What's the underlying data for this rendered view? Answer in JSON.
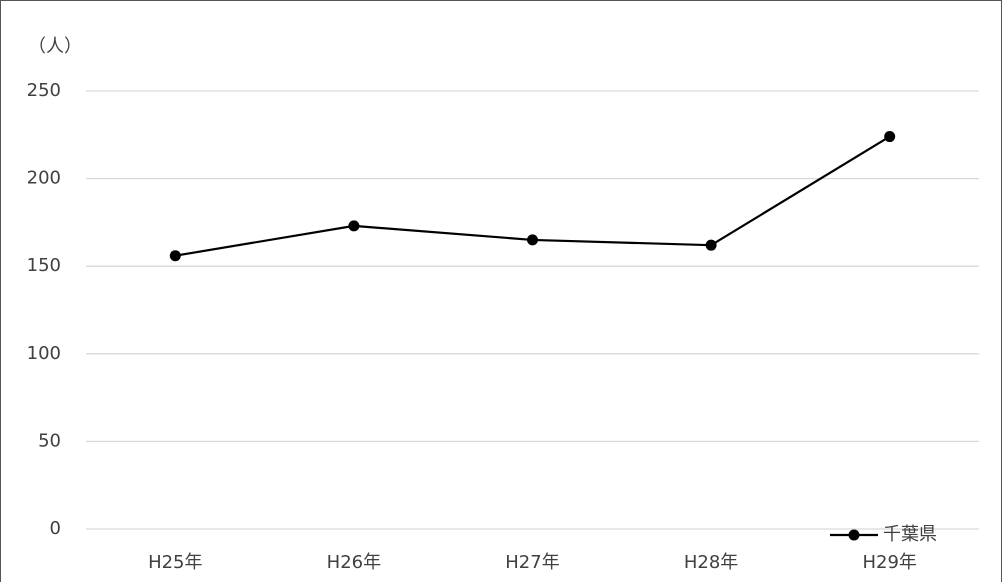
{
  "chart_data": {
    "type": "line",
    "y_axis_label": "（人）",
    "categories": [
      "H25年",
      "H26年",
      "H27年",
      "H28年",
      "H29年"
    ],
    "series": [
      {
        "name": "千葉県",
        "color": "#000000",
        "values": [
          156,
          173,
          165,
          162,
          224
        ]
      }
    ],
    "ylim": [
      0,
      250
    ],
    "yticks": [
      0,
      50,
      100,
      150,
      200,
      250
    ],
    "grid": true,
    "legend": "lower right"
  }
}
